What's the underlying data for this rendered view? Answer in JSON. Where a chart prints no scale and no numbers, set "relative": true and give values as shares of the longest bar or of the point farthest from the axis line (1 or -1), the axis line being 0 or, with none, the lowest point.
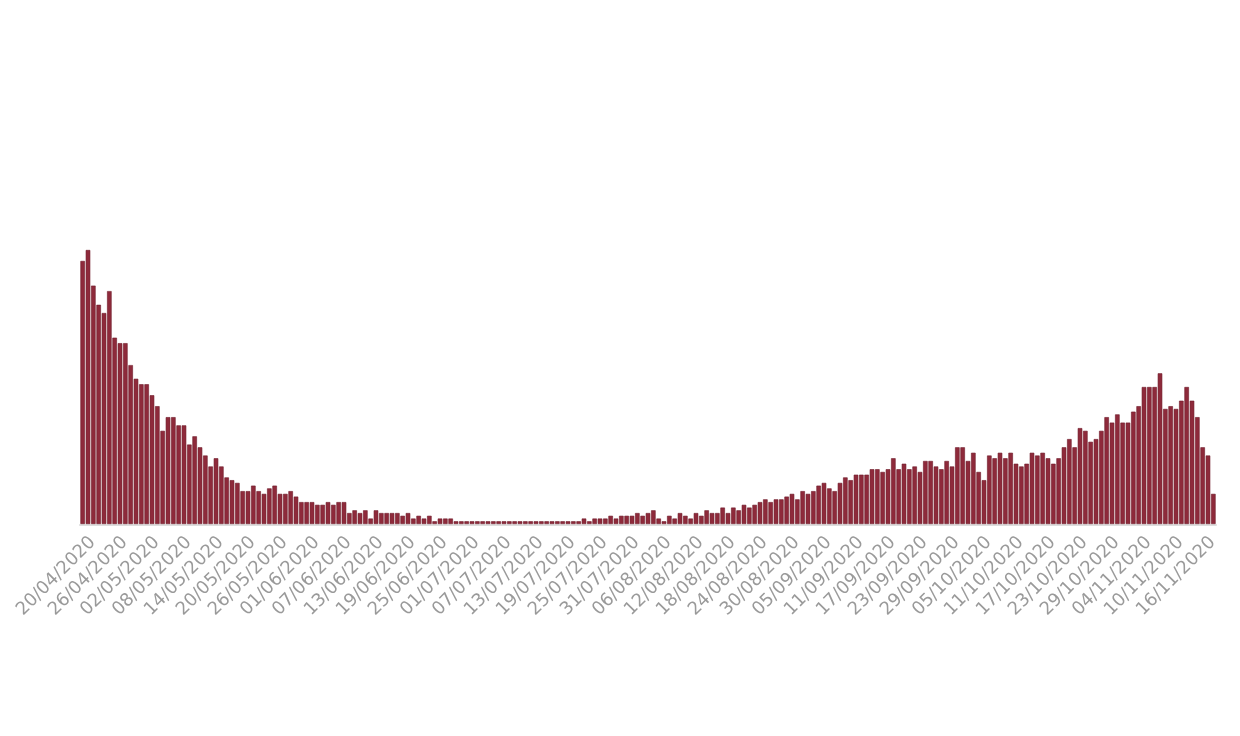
{
  "chart_data": {
    "type": "bar",
    "relative": true,
    "color": "#8e2a3b",
    "categories": [
      null,
      null,
      "20/04/2020",
      null,
      null,
      null,
      null,
      null,
      "26/04/2020",
      null,
      null,
      null,
      null,
      null,
      "02/05/2020",
      null,
      null,
      null,
      null,
      null,
      "08/05/2020",
      null,
      null,
      null,
      null,
      null,
      "14/05/2020",
      null,
      null,
      null,
      null,
      null,
      "20/05/2020",
      null,
      null,
      null,
      null,
      null,
      "26/05/2020",
      null,
      null,
      null,
      null,
      null,
      "01/06/2020",
      null,
      null,
      null,
      null,
      null,
      "07/06/2020",
      null,
      null,
      null,
      null,
      null,
      "13/06/2020",
      null,
      null,
      null,
      null,
      null,
      "19/06/2020",
      null,
      null,
      null,
      null,
      null,
      "25/06/2020",
      null,
      null,
      null,
      null,
      null,
      "01/07/2020",
      null,
      null,
      null,
      null,
      null,
      "07/07/2020",
      null,
      null,
      null,
      null,
      null,
      "13/07/2020",
      null,
      null,
      null,
      null,
      null,
      "19/07/2020",
      null,
      null,
      null,
      null,
      null,
      "25/07/2020",
      null,
      null,
      null,
      null,
      null,
      "31/07/2020",
      null,
      null,
      null,
      null,
      null,
      "06/08/2020",
      null,
      null,
      null,
      null,
      null,
      "12/08/2020",
      null,
      null,
      null,
      null,
      null,
      "18/08/2020",
      null,
      null,
      null,
      null,
      null,
      "24/08/2020",
      null,
      null,
      null,
      null,
      null,
      "30/08/2020",
      null,
      null,
      null,
      null,
      null,
      "05/09/2020",
      null,
      null,
      null,
      null,
      null,
      "11/09/2020",
      null,
      null,
      null,
      null,
      null,
      "17/09/2020",
      null,
      null,
      null,
      null,
      null,
      "23/09/2020",
      null,
      null,
      null,
      null,
      null,
      "29/09/2020",
      null,
      null,
      null,
      null,
      null,
      "05/10/2020",
      null,
      null,
      null,
      null,
      null,
      "11/10/2020",
      null,
      null,
      null,
      null,
      null,
      "17/10/2020",
      null,
      null,
      null,
      null,
      null,
      "23/10/2020",
      null,
      null,
      null,
      null,
      null,
      "29/10/2020",
      null,
      null,
      null,
      null,
      null,
      "04/11/2020",
      null,
      null,
      null,
      null,
      null,
      "10/11/2020",
      null,
      null,
      null,
      null,
      null,
      "16/11/2020"
    ],
    "values": [
      0.96,
      1,
      0.87,
      0.8,
      0.77,
      0.85,
      0.68,
      0.66,
      0.66,
      0.58,
      0.53,
      0.51,
      0.51,
      0.47,
      0.43,
      0.34,
      0.39,
      0.39,
      0.36,
      0.36,
      0.29,
      0.32,
      0.28,
      0.25,
      0.21,
      0.24,
      0.21,
      0.17,
      0.16,
      0.15,
      0.12,
      0.12,
      0.14,
      0.12,
      0.11,
      0.13,
      0.14,
      0.11,
      0.11,
      0.12,
      0.1,
      0.08,
      0.08,
      0.08,
      0.07,
      0.07,
      0.08,
      0.07,
      0.08,
      0.08,
      0.04,
      0.05,
      0.04,
      0.05,
      0.02,
      0.05,
      0.04,
      0.04,
      0.04,
      0.04,
      0.03,
      0.04,
      0.02,
      0.03,
      0.02,
      0.03,
      0.01,
      0.02,
      0.02,
      0.02,
      0.01,
      0.01,
      0.01,
      0.01,
      0.01,
      0.01,
      0.01,
      0.01,
      0.01,
      0.01,
      0.01,
      0.01,
      0.01,
      0.01,
      0.01,
      0.01,
      0.01,
      0.01,
      0.01,
      0.01,
      0.01,
      0.01,
      0.01,
      0.01,
      0.02,
      0.01,
      0.02,
      0.02,
      0.02,
      0.03,
      0.02,
      0.03,
      0.03,
      0.03,
      0.04,
      0.03,
      0.04,
      0.05,
      0.02,
      0.01,
      0.03,
      0.02,
      0.04,
      0.03,
      0.02,
      0.04,
      0.03,
      0.05,
      0.04,
      0.04,
      0.06,
      0.04,
      0.06,
      0.05,
      0.07,
      0.06,
      0.07,
      0.08,
      0.09,
      0.08,
      0.09,
      0.09,
      0.1,
      0.11,
      0.09,
      0.12,
      0.11,
      0.12,
      0.14,
      0.15,
      0.13,
      0.12,
      0.15,
      0.17,
      0.16,
      0.18,
      0.18,
      0.18,
      0.2,
      0.2,
      0.19,
      0.2,
      0.24,
      0.2,
      0.22,
      0.2,
      0.21,
      0.19,
      0.23,
      0.23,
      0.21,
      0.2,
      0.23,
      0.21,
      0.28,
      0.28,
      0.23,
      0.26,
      0.19,
      0.16,
      0.25,
      0.24,
      0.26,
      0.24,
      0.26,
      0.22,
      0.21,
      0.22,
      0.26,
      0.25,
      0.26,
      0.24,
      0.22,
      0.24,
      0.28,
      0.31,
      0.28,
      0.35,
      0.34,
      0.3,
      0.31,
      0.34,
      0.39,
      0.37,
      0.4,
      0.37,
      0.37,
      0.41,
      0.43,
      0.5,
      0.5,
      0.5,
      0.55,
      0.42,
      0.43,
      0.42,
      0.45,
      0.5,
      0.45,
      0.39,
      0.28,
      0.25,
      0.11
    ]
  }
}
